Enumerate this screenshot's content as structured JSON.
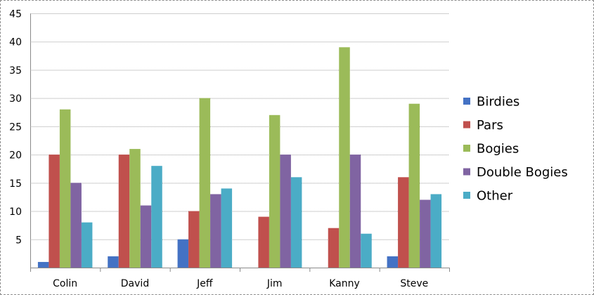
{
  "chart_data": {
    "type": "bar",
    "title": "",
    "xlabel": "",
    "ylabel": "",
    "categories": [
      "Colin",
      "David",
      "Jeff",
      "Jim",
      "Kanny",
      "Steve"
    ],
    "series": [
      {
        "name": "Birdies",
        "color": "#4472C4",
        "values": [
          1,
          2,
          5,
          0,
          0,
          2
        ]
      },
      {
        "name": "Pars",
        "color": "#C0504D",
        "values": [
          20,
          20,
          10,
          9,
          7,
          16
        ]
      },
      {
        "name": "Bogies",
        "color": "#9BBB59",
        "values": [
          28,
          21,
          30,
          27,
          39,
          29
        ]
      },
      {
        "name": "Double Bogies",
        "color": "#8064A2",
        "values": [
          15,
          11,
          13,
          20,
          20,
          12
        ]
      },
      {
        "name": "Other",
        "color": "#4BACC6",
        "values": [
          8,
          18,
          14,
          16,
          6,
          13
        ]
      }
    ],
    "ylim": [
      0,
      45
    ],
    "yticks": [
      5,
      10,
      15,
      20,
      25,
      30,
      35,
      40,
      45
    ],
    "grid": true,
    "legend_position": "right"
  }
}
